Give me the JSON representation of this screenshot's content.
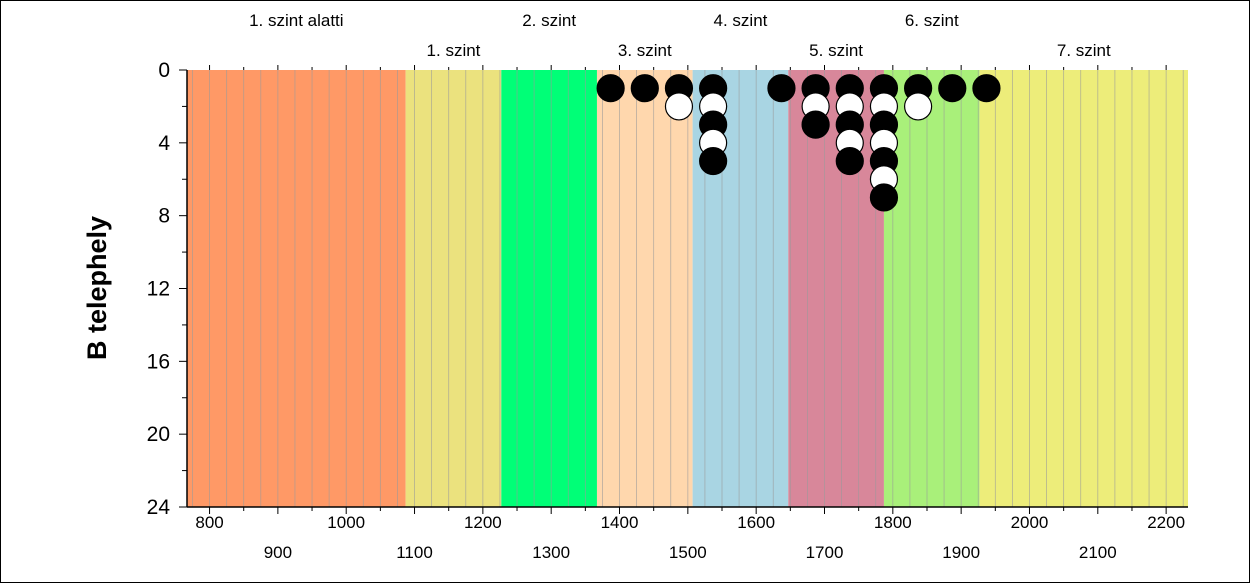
{
  "chart_data": {
    "type": "scatter",
    "ylabel": "B telephely",
    "xlim": [
      767,
      2232
    ],
    "ylim": [
      0,
      24
    ],
    "y_inverted": true,
    "x_ticks_row1": [
      "800",
      "1000",
      "1200",
      "1400",
      "1600",
      "1800",
      "2000",
      "2200"
    ],
    "x_ticks_row2": [
      "900",
      "1100",
      "1300",
      "1500",
      "1700",
      "1900",
      "2100"
    ],
    "y_ticks": [
      "0",
      "4",
      "8",
      "12",
      "16",
      "20",
      "24"
    ],
    "zones": [
      {
        "label": "1. szint alatti",
        "from": 767,
        "to": 1087,
        "color": "#FF9966",
        "label_row": 1
      },
      {
        "label": "1. szint",
        "from": 1087,
        "to": 1227,
        "color": "#EBE27E",
        "label_row": 2
      },
      {
        "label": "2. szint",
        "from": 1227,
        "to": 1367,
        "color": "#00FF77",
        "label_row": 1
      },
      {
        "label": "3. szint",
        "from": 1367,
        "to": 1507,
        "color": "#FFD7AD",
        "label_row": 2
      },
      {
        "label": "4. szint",
        "from": 1507,
        "to": 1647,
        "color": "#A9D5E3",
        "label_row": 1
      },
      {
        "label": "5. szint",
        "from": 1647,
        "to": 1787,
        "color": "#D8879A",
        "label_row": 2
      },
      {
        "label": "6. szint",
        "from": 1787,
        "to": 1927,
        "color": "#A9F07A",
        "label_row": 1
      },
      {
        "label": "7. szint",
        "from": 1927,
        "to": 2232,
        "color": "#EDED7A",
        "label_row": 2
      }
    ],
    "series": [
      {
        "fill": "#000000",
        "points": [
          [
            1387,
            1
          ],
          [
            1437,
            1
          ],
          [
            1487,
            1
          ],
          [
            1537,
            1
          ],
          [
            1537,
            3
          ],
          [
            1537,
            5
          ],
          [
            1637,
            1
          ],
          [
            1687,
            1
          ],
          [
            1687,
            3
          ],
          [
            1737,
            1
          ],
          [
            1737,
            3
          ],
          [
            1737,
            5
          ],
          [
            1787,
            1
          ],
          [
            1787,
            3
          ],
          [
            1787,
            5
          ],
          [
            1787,
            7
          ],
          [
            1837,
            1
          ],
          [
            1887,
            1
          ],
          [
            1937,
            1
          ]
        ]
      },
      {
        "fill": "#FFFFFF",
        "points": [
          [
            1487,
            2
          ],
          [
            1537,
            2
          ],
          [
            1537,
            4
          ],
          [
            1687,
            2
          ],
          [
            1737,
            2
          ],
          [
            1737,
            4
          ],
          [
            1787,
            2
          ],
          [
            1787,
            4
          ],
          [
            1787,
            6
          ],
          [
            1837,
            2
          ]
        ]
      }
    ]
  }
}
